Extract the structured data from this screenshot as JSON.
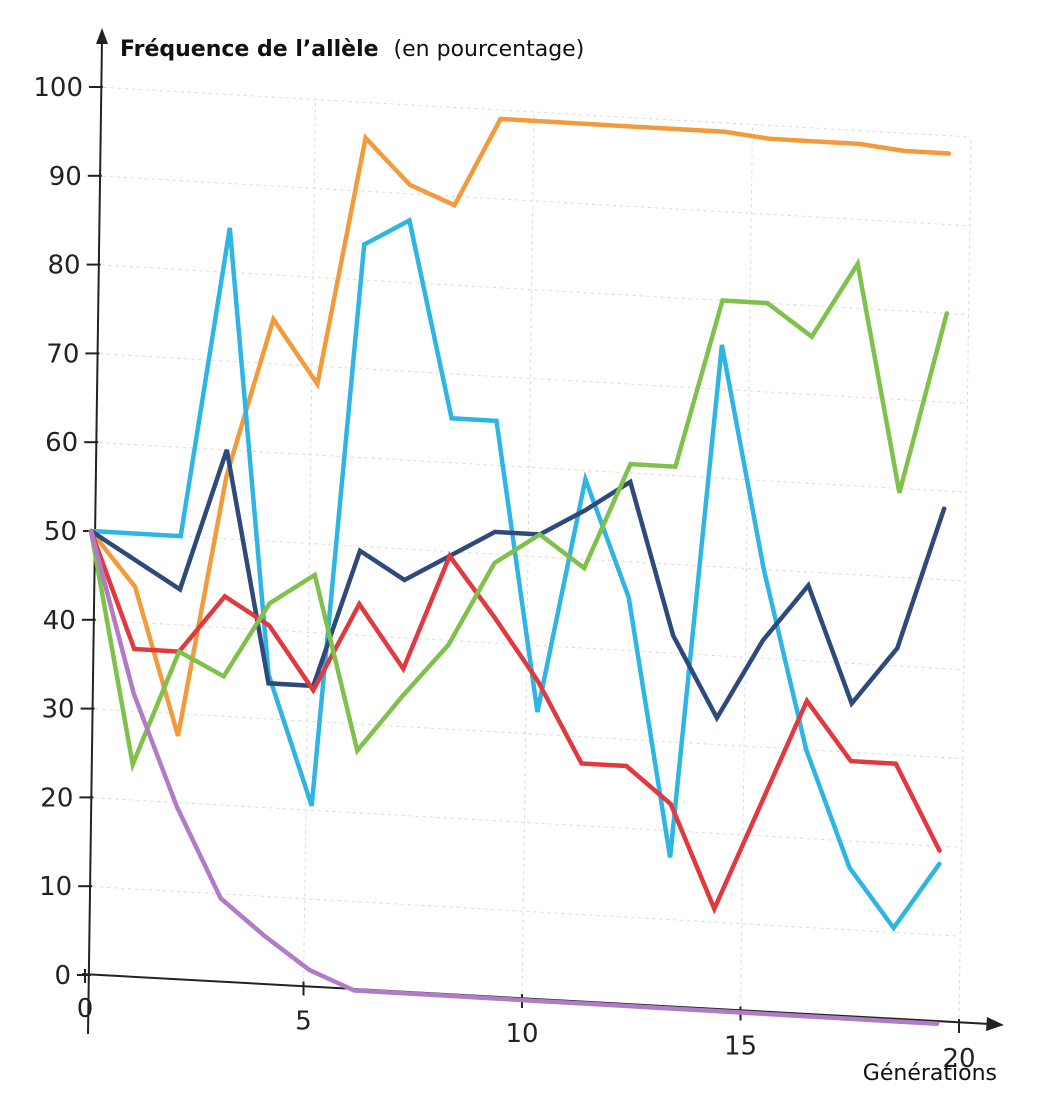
{
  "chart_data": {
    "type": "line",
    "ylabel_bold": "Fréquence de l’allèle",
    "ylabel_rest": "(en pourcentage)",
    "xlabel": "Générations",
    "xlim": [
      0,
      20
    ],
    "ylim": [
      0,
      100
    ],
    "x_ticks": [
      "0",
      "5",
      "10",
      "15",
      "20"
    ],
    "y_ticks": [
      "0",
      "10",
      "20",
      "30",
      "40",
      "50",
      "60",
      "70",
      "80",
      "90",
      "100"
    ],
    "grid": true,
    "series": [
      {
        "color": "#f39a3c",
        "x": [
          0,
          1,
          2,
          3,
          4,
          5,
          6,
          7,
          8,
          9,
          10,
          11,
          12,
          13,
          14,
          15,
          16,
          17,
          18,
          19
        ],
        "y": [
          50,
          44,
          27.5,
          57,
          75,
          68,
          96,
          91,
          89,
          99,
          99,
          99,
          99,
          99,
          99,
          98.5,
          98.5,
          98.5,
          98,
          98
        ]
      },
      {
        "color": "#2fb5e3",
        "x": [
          0,
          1,
          2,
          3,
          4,
          5,
          6,
          7,
          8,
          9,
          10,
          11,
          12,
          13,
          14,
          15,
          16,
          17,
          18,
          19
        ],
        "y": [
          50,
          50,
          50,
          85,
          35,
          20.5,
          84,
          87,
          65,
          65,
          32.5,
          59,
          46,
          17,
          75,
          50,
          30,
          17,
          10.5,
          18
        ]
      },
      {
        "color": "#2e4a7a",
        "x": [
          0,
          1,
          2,
          3,
          4,
          5,
          6,
          7,
          8,
          9,
          10,
          11,
          12,
          13,
          14,
          15,
          16,
          17,
          18,
          19
        ],
        "y": [
          50,
          47,
          44,
          60,
          34,
          34,
          49.5,
          46.5,
          49.5,
          52.5,
          52.5,
          55.5,
          59,
          42,
          33,
          42,
          48.5,
          35.5,
          42,
          58
        ]
      },
      {
        "color": "#e0393e",
        "x": [
          0,
          1,
          2,
          3,
          4,
          5,
          6,
          7,
          8,
          9,
          10,
          11,
          12,
          13,
          14,
          15,
          16,
          17,
          18,
          19
        ],
        "y": [
          50,
          37,
          37,
          43.5,
          40.5,
          33.5,
          43.5,
          36.5,
          49.5,
          43,
          36,
          27,
          27,
          23,
          11.5,
          23.5,
          35.5,
          29,
          29,
          19.5
        ]
      },
      {
        "color": "#7fc14a",
        "x": [
          0,
          1,
          2,
          3,
          4,
          5,
          6,
          7,
          8,
          9,
          10,
          11,
          12,
          13,
          14,
          15,
          16,
          17,
          18,
          19
        ],
        "y": [
          50,
          24,
          37,
          34.5,
          43,
          46.5,
          27,
          33.5,
          39.5,
          49,
          52.5,
          49,
          61,
          61,
          80,
          80,
          76.5,
          85,
          59.5,
          80
        ]
      },
      {
        "color": "#b07cc6",
        "x": [
          0,
          1,
          2,
          3,
          4,
          5,
          6,
          7,
          8,
          9,
          10,
          11,
          12,
          13,
          14,
          15,
          16,
          17,
          18,
          19
        ],
        "y": [
          50,
          32,
          19.5,
          9.5,
          5.5,
          2,
          0,
          0,
          0,
          0,
          0,
          0,
          0,
          0,
          0,
          0,
          0,
          0,
          0,
          0
        ]
      }
    ]
  }
}
